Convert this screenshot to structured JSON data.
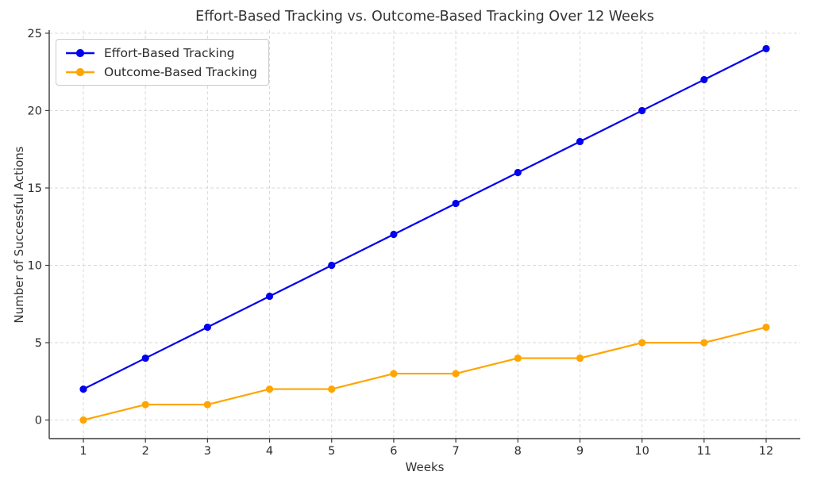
{
  "chart_data": {
    "type": "line",
    "title": "Effort-Based Tracking vs. Outcome-Based Tracking Over 12 Weeks",
    "xlabel": "Weeks",
    "ylabel": "Number of Successful Actions",
    "x": [
      1,
      2,
      3,
      4,
      5,
      6,
      7,
      8,
      9,
      10,
      11,
      12
    ],
    "series": [
      {
        "name": "Effort-Based Tracking",
        "color": "#0202ee",
        "marker": "circle",
        "values": [
          2,
          4,
          6,
          8,
          10,
          12,
          14,
          16,
          18,
          20,
          22,
          24
        ]
      },
      {
        "name": "Outcome-Based Tracking",
        "color": "#ffa500",
        "marker": "circle",
        "values": [
          0,
          1,
          1,
          2,
          2,
          3,
          3,
          4,
          4,
          5,
          5,
          6
        ]
      }
    ],
    "xticks": [
      1,
      2,
      3,
      4,
      5,
      6,
      7,
      8,
      9,
      10,
      11,
      12
    ],
    "yticks": [
      0,
      5,
      10,
      15,
      20,
      25
    ],
    "xlim": [
      0.45,
      12.55
    ],
    "ylim": [
      -1.2,
      25.2
    ],
    "grid": true,
    "grid_style": "dashed",
    "legend_position": "upper left"
  },
  "colors": {
    "grid": "#d9d9d9",
    "spine": "#3a3a3a",
    "text": "#2b2b2b",
    "background": "#ffffff",
    "legend_border": "#cccccc"
  }
}
